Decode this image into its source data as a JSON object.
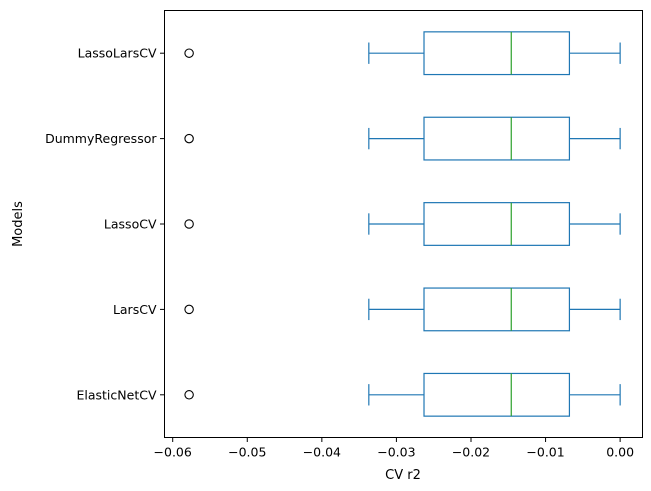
{
  "chart_data": {
    "type": "box",
    "orientation": "horizontal",
    "title": "",
    "xlabel": "CV r2",
    "ylabel": "Models",
    "xlim": [
      -0.0611,
      0.003
    ],
    "xticks": [
      -0.06,
      -0.05,
      -0.04,
      -0.03,
      -0.02,
      -0.01,
      0.0
    ],
    "xtick_labels": [
      "−0.06",
      "−0.05",
      "−0.04",
      "−0.03",
      "−0.02",
      "−0.01",
      "0.00"
    ],
    "grid": false,
    "box_color": "#1f77b4",
    "median_color": "#2ca02c",
    "categories": [
      "LassoLarsCV",
      "DummyRegressor",
      "LassoCV",
      "LarsCV",
      "ElasticNetCV"
    ],
    "series": [
      {
        "name": "LassoLarsCV",
        "whisker_low": -0.0337,
        "q1": -0.0263,
        "median": -0.0146,
        "q3": -0.0068,
        "whisker_high": 0.0,
        "outliers": [
          -0.0578
        ]
      },
      {
        "name": "DummyRegressor",
        "whisker_low": -0.0337,
        "q1": -0.0263,
        "median": -0.0146,
        "q3": -0.0068,
        "whisker_high": 0.0,
        "outliers": [
          -0.0578
        ]
      },
      {
        "name": "LassoCV",
        "whisker_low": -0.0337,
        "q1": -0.0263,
        "median": -0.0146,
        "q3": -0.0068,
        "whisker_high": 0.0,
        "outliers": [
          -0.0578
        ]
      },
      {
        "name": "LarsCV",
        "whisker_low": -0.0337,
        "q1": -0.0263,
        "median": -0.0146,
        "q3": -0.0068,
        "whisker_high": 0.0,
        "outliers": [
          -0.0578
        ]
      },
      {
        "name": "ElasticNetCV",
        "whisker_low": -0.0337,
        "q1": -0.0263,
        "median": -0.0146,
        "q3": -0.0068,
        "whisker_high": 0.0,
        "outliers": [
          -0.0578
        ]
      }
    ]
  }
}
